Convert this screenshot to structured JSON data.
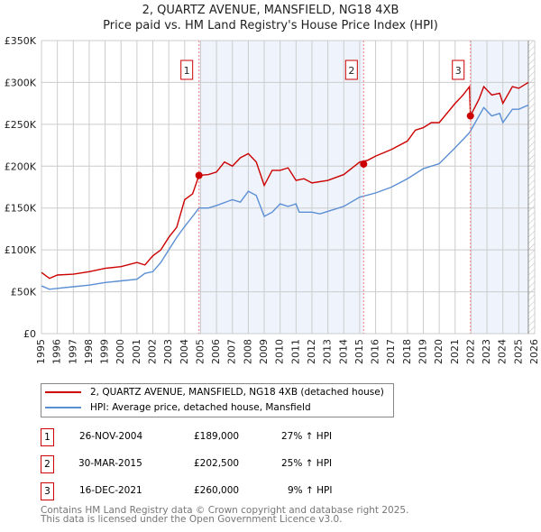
{
  "title": "2, QUARTZ AVENUE, MANSFIELD, NG18 4XB",
  "subtitle": "Price paid vs. HM Land Registry's House Price Index (HPI)",
  "chart_data": {
    "type": "line",
    "title": "2, QUARTZ AVENUE, MANSFIELD, NG18 4XB — Price paid vs. HM Land Registry's House Price Index (HPI)",
    "xlim": [
      1995,
      2026
    ],
    "ylim": [
      0,
      350000
    ],
    "x_ticks": [
      "1995",
      "1996",
      "1997",
      "1998",
      "1999",
      "2000",
      "2001",
      "2002",
      "2003",
      "2004",
      "2005",
      "2006",
      "2007",
      "2008",
      "2009",
      "2010",
      "2011",
      "2012",
      "2013",
      "2014",
      "2015",
      "2016",
      "2017",
      "2018",
      "2019",
      "2020",
      "2021",
      "2022",
      "2023",
      "2024",
      "2025",
      "2026"
    ],
    "y_ticks": [
      {
        "v": 0,
        "label": "£0"
      },
      {
        "v": 50000,
        "label": "£50K"
      },
      {
        "v": 100000,
        "label": "£100K"
      },
      {
        "v": 150000,
        "label": "£150K"
      },
      {
        "v": 200000,
        "label": "£200K"
      },
      {
        "v": 250000,
        "label": "£250K"
      },
      {
        "v": 300000,
        "label": "£300K"
      },
      {
        "v": 350000,
        "label": "£350K"
      }
    ],
    "series": [
      {
        "name": "2, QUARTZ AVENUE, MANSFIELD, NG18 4XB (detached house)",
        "color": "#cc0000",
        "x": [
          1995,
          1995.5,
          1996,
          1997,
          1998,
          1999,
          2000,
          2001,
          2001.5,
          2002,
          2002.5,
          2003,
          2003.5,
          2004,
          2004.5,
          2004.9,
          2005.5,
          2006,
          2006.5,
          2007,
          2007.5,
          2008,
          2008.5,
          2009,
          2009.5,
          2010,
          2010.5,
          2011,
          2011.5,
          2012,
          2013,
          2014,
          2015,
          2015.5,
          2016,
          2017,
          2018,
          2018.5,
          2019,
          2019.5,
          2020,
          2021,
          2021.5,
          2021.9,
          2021.96,
          2022.5,
          2022.8,
          2023.3,
          2023.8,
          2024,
          2024.6,
          2025,
          2025.6
        ],
        "y": [
          73000,
          66000,
          70000,
          71000,
          74000,
          78000,
          80000,
          85000,
          82000,
          93000,
          100000,
          115000,
          127000,
          160000,
          167000,
          189000,
          190000,
          193000,
          205000,
          200000,
          210000,
          215000,
          205000,
          177000,
          195000,
          195000,
          198000,
          183000,
          185000,
          180000,
          183000,
          190000,
          205000,
          207000,
          212000,
          220000,
          230000,
          243000,
          246000,
          252000,
          252000,
          275000,
          285000,
          295000,
          260000,
          280000,
          295000,
          285000,
          287000,
          275000,
          295000,
          293000,
          300000
        ]
      },
      {
        "name": "HPI: Average price, detached house, Mansfield",
        "color": "#5b8fd4",
        "x": [
          1995,
          1995.5,
          1996,
          1997,
          1998,
          1999,
          2000,
          2001,
          2001.5,
          2002,
          2002.5,
          2003,
          2003.5,
          2004,
          2004.5,
          2004.9,
          2005.5,
          2006,
          2007,
          2007.5,
          2008,
          2008.5,
          2009,
          2009.5,
          2010,
          2010.5,
          2011,
          2011.2,
          2012,
          2012.5,
          2013,
          2014,
          2015,
          2016,
          2017,
          2018,
          2019,
          2020,
          2021,
          2021.9,
          2022.5,
          2022.8,
          2023.3,
          2023.8,
          2024,
          2024.6,
          2025,
          2025.6
        ],
        "y": [
          57000,
          53000,
          54000,
          56000,
          58000,
          61000,
          63000,
          65000,
          72000,
          74000,
          85000,
          100000,
          115000,
          128000,
          140000,
          150000,
          150000,
          153000,
          160000,
          157000,
          170000,
          165000,
          140000,
          145000,
          155000,
          152000,
          155000,
          145000,
          145000,
          143000,
          146000,
          152000,
          163000,
          168000,
          175000,
          185000,
          197000,
          203000,
          222000,
          240000,
          260000,
          270000,
          260000,
          263000,
          252000,
          268000,
          268000,
          273000
        ]
      }
    ],
    "sales": [
      {
        "num": "1",
        "date": "26-NOV-2004",
        "x": 2004.9,
        "price": "£189,000",
        "value": 189000,
        "hpi": "27% ↑ HPI"
      },
      {
        "num": "2",
        "date": "30-MAR-2015",
        "x": 2015.25,
        "price": "£202,500",
        "value": 202500,
        "hpi": "25% ↑ HPI"
      },
      {
        "num": "3",
        "date": "16-DEC-2021",
        "x": 2021.96,
        "price": "£260,000",
        "value": 260000,
        "hpi": "9% ↑ HPI"
      }
    ],
    "shaded": [
      [
        2004.9,
        2015.25
      ],
      [
        2021.96,
        2025.6
      ]
    ],
    "hatched_from": 2025.6
  },
  "footer": [
    "Contains HM Land Registry data © Crown copyright and database right 2025.",
    "This data is licensed under the Open Government Licence v3.0."
  ]
}
